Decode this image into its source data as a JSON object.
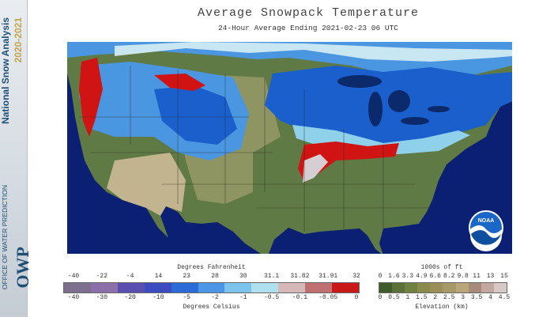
{
  "header": {
    "title": "Average Snowpack Temperature",
    "subtitle": "24-Hour Average Ending 2021-02-23 06 UTC"
  },
  "sidebar": {
    "title": "National Snow Analysis",
    "years": "2020-2021",
    "org_sub": "OFFICE OF WATER PREDICTION",
    "org_abbr": "OWP"
  },
  "map": {
    "logo_text": "NOAA",
    "colors": {
      "ocean": "#0b1f73",
      "land_snowfree": "#5f7a44",
      "plains": "#8f9463",
      "desert": "#c2b48f",
      "cold_snow": "#1a5fcc",
      "cool_snow": "#4a96e0",
      "mild_snow": "#8fd0ea",
      "near_zero": "#d7eef5",
      "warm_snow": "#d01414",
      "lake": "#0b2a6b",
      "borders": "#2a2a2a"
    }
  },
  "legend_temperature": {
    "title_f": "Degrees Fahrenheit",
    "title_c": "Degrees Celsius",
    "fahrenheit_ticks": [
      "-40",
      "-22",
      "-4",
      "14",
      "23",
      "28",
      "30",
      "31.1",
      "31.82",
      "31.91",
      "32"
    ],
    "celsius_ticks": [
      "-40",
      "-30",
      "-20",
      "-10",
      "-5",
      "-2",
      "-1",
      "-0.5",
      "-0.1",
      "-0.05",
      "0"
    ],
    "colors": [
      "#7f6f8e",
      "#8a6fa8",
      "#5a4fb0",
      "#3c4cc0",
      "#2b6bd8",
      "#4b96e6",
      "#7cc4ee",
      "#aee0f0",
      "#d6b8b8",
      "#c07070",
      "#c81818"
    ]
  },
  "legend_elevation": {
    "title_ft": "1000s of ft",
    "title_km": "Elevation (km)",
    "ft_ticks": [
      "0",
      "1.6",
      "3.3",
      "4.9",
      "6.6",
      "8.2",
      "9.8",
      "11",
      "13",
      "15"
    ],
    "km_ticks": [
      "0",
      "0.5",
      "1",
      "1.5",
      "2",
      "2.5",
      "3",
      "3.5",
      "4",
      "4.5"
    ],
    "colors": [
      "#3f5a2b",
      "#5a7038",
      "#6f8040",
      "#8a8a4c",
      "#9a8f58",
      "#a89a68",
      "#b9a67a",
      "#a88a7a",
      "#c2a8a0",
      "#d8c8c8"
    ]
  }
}
